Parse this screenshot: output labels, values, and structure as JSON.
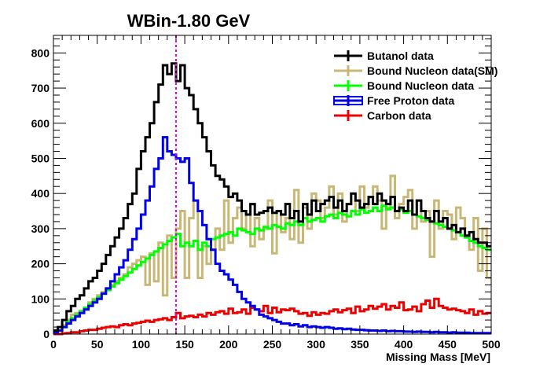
{
  "chart_data": {
    "type": "line",
    "style": "step-histogram",
    "title": "WBin-1.80 GeV",
    "xlabel": "Missing Mass [MeV]",
    "ylabel": "",
    "xlim": [
      0,
      500
    ],
    "ylim": [
      0,
      850
    ],
    "x_ticks": [
      0,
      50,
      100,
      150,
      200,
      250,
      300,
      350,
      400,
      450,
      500
    ],
    "y_ticks": [
      0,
      100,
      200,
      300,
      400,
      500,
      600,
      700,
      800
    ],
    "grid": false,
    "legend_position": "top-right",
    "bin_width": 5,
    "annotations": [
      {
        "type": "vertical-dashed-line",
        "x": 140,
        "color": "#e000e0"
      }
    ],
    "series": [
      {
        "name": "Butanol data",
        "color": "#000000",
        "x": [
          0,
          5,
          10,
          15,
          20,
          25,
          30,
          35,
          40,
          45,
          50,
          55,
          60,
          65,
          70,
          75,
          80,
          85,
          90,
          95,
          100,
          105,
          110,
          115,
          120,
          125,
          130,
          135,
          140,
          145,
          150,
          155,
          160,
          165,
          170,
          175,
          180,
          185,
          190,
          195,
          200,
          205,
          210,
          215,
          220,
          225,
          230,
          235,
          240,
          245,
          250,
          255,
          260,
          265,
          270,
          275,
          280,
          285,
          290,
          295,
          300,
          305,
          310,
          315,
          320,
          325,
          330,
          335,
          340,
          345,
          350,
          355,
          360,
          365,
          370,
          375,
          380,
          385,
          390,
          395,
          400,
          405,
          410,
          415,
          420,
          425,
          430,
          435,
          440,
          445,
          450,
          455,
          460,
          465,
          470,
          475,
          480,
          485,
          490,
          495
        ],
        "values": [
          10,
          20,
          40,
          65,
          80,
          100,
          110,
          130,
          150,
          160,
          180,
          200,
          225,
          250,
          275,
          300,
          330,
          370,
          400,
          470,
          520,
          560,
          600,
          660,
          710,
          765,
          740,
          770,
          720,
          765,
          700,
          680,
          640,
          600,
          560,
          520,
          480,
          450,
          440,
          420,
          390,
          400,
          380,
          350,
          340,
          370,
          340,
          345,
          350,
          360,
          345,
          350,
          340,
          370,
          330,
          350,
          320,
          370,
          340,
          380,
          350,
          370,
          380,
          390,
          360,
          380,
          350,
          370,
          400,
          380,
          360,
          370,
          390,
          370,
          400,
          380,
          370,
          390,
          350,
          360,
          350,
          380,
          340,
          380,
          350,
          330,
          320,
          350,
          320,
          330,
          300,
          310,
          290,
          300,
          280,
          290,
          270,
          260,
          260,
          250
        ]
      },
      {
        "name": "Bound Nucleon data(SM)",
        "color": "#c8b878",
        "x": [
          0,
          5,
          10,
          15,
          20,
          25,
          30,
          35,
          40,
          45,
          50,
          55,
          60,
          65,
          70,
          75,
          80,
          85,
          90,
          95,
          100,
          105,
          110,
          115,
          120,
          125,
          130,
          135,
          140,
          145,
          150,
          155,
          160,
          165,
          170,
          175,
          180,
          185,
          190,
          195,
          200,
          205,
          210,
          215,
          220,
          225,
          230,
          235,
          240,
          245,
          250,
          255,
          260,
          265,
          270,
          275,
          280,
          285,
          290,
          295,
          300,
          305,
          310,
          315,
          320,
          325,
          330,
          335,
          340,
          345,
          350,
          355,
          360,
          365,
          370,
          375,
          380,
          385,
          390,
          395,
          400,
          405,
          410,
          415,
          420,
          425,
          430,
          435,
          440,
          445,
          450,
          455,
          460,
          465,
          470,
          475,
          480,
          485,
          490,
          495
        ],
        "values": [
          5,
          10,
          25,
          40,
          55,
          60,
          65,
          75,
          90,
          100,
          110,
          120,
          130,
          140,
          150,
          160,
          170,
          190,
          200,
          210,
          220,
          140,
          230,
          150,
          260,
          110,
          280,
          160,
          300,
          350,
          160,
          330,
          380,
          160,
          250,
          200,
          240,
          300,
          240,
          380,
          260,
          330,
          360,
          300,
          340,
          250,
          330,
          270,
          300,
          380,
          230,
          350,
          290,
          330,
          270,
          410,
          260,
          360,
          300,
          400,
          380,
          330,
          360,
          420,
          340,
          400,
          320,
          370,
          400,
          350,
          420,
          360,
          390,
          420,
          380,
          300,
          360,
          450,
          330,
          370,
          390,
          410,
          300,
          380,
          320,
          350,
          220,
          380,
          300,
          350,
          340,
          270,
          360,
          330,
          280,
          240,
          330,
          180,
          300,
          160
        ]
      },
      {
        "name": "Bound Nucleon data",
        "color": "#00ff00",
        "x": [
          0,
          5,
          10,
          15,
          20,
          25,
          30,
          35,
          40,
          45,
          50,
          55,
          60,
          65,
          70,
          75,
          80,
          85,
          90,
          95,
          100,
          105,
          110,
          115,
          120,
          125,
          130,
          135,
          140,
          145,
          150,
          155,
          160,
          165,
          170,
          175,
          180,
          185,
          190,
          195,
          200,
          205,
          210,
          215,
          220,
          225,
          230,
          235,
          240,
          245,
          250,
          255,
          260,
          265,
          270,
          275,
          280,
          285,
          290,
          295,
          300,
          305,
          310,
          315,
          320,
          325,
          330,
          335,
          340,
          345,
          350,
          355,
          360,
          365,
          370,
          375,
          380,
          385,
          390,
          395,
          400,
          405,
          410,
          415,
          420,
          425,
          430,
          435,
          440,
          445,
          450,
          455,
          460,
          465,
          470,
          475,
          480,
          485,
          490,
          495
        ],
        "values": [
          5,
          10,
          20,
          35,
          45,
          55,
          65,
          75,
          85,
          95,
          105,
          115,
          125,
          135,
          145,
          155,
          165,
          175,
          185,
          195,
          205,
          215,
          225,
          235,
          245,
          255,
          265,
          275,
          285,
          250,
          260,
          250,
          265,
          240,
          260,
          250,
          270,
          275,
          280,
          285,
          290,
          280,
          300,
          295,
          290,
          285,
          300,
          295,
          305,
          300,
          310,
          305,
          300,
          315,
          310,
          320,
          310,
          330,
          320,
          325,
          330,
          320,
          335,
          340,
          330,
          345,
          340,
          335,
          350,
          340,
          355,
          345,
          350,
          360,
          350,
          365,
          355,
          360,
          350,
          355,
          345,
          350,
          340,
          335,
          330,
          325,
          320,
          315,
          310,
          305,
          300,
          295,
          290,
          280,
          275,
          265,
          260,
          250,
          245,
          240
        ]
      },
      {
        "name": "Free Proton data",
        "color": "#0000ee",
        "x": [
          0,
          5,
          10,
          15,
          20,
          25,
          30,
          35,
          40,
          45,
          50,
          55,
          60,
          65,
          70,
          75,
          80,
          85,
          90,
          95,
          100,
          105,
          110,
          115,
          120,
          125,
          130,
          135,
          140,
          145,
          150,
          155,
          160,
          165,
          170,
          175,
          180,
          185,
          190,
          195,
          200,
          205,
          210,
          215,
          220,
          225,
          230,
          235,
          240,
          245,
          250,
          255,
          260,
          265,
          270,
          275,
          280,
          285,
          290,
          295,
          300,
          305,
          310,
          315,
          320,
          325,
          330,
          335,
          340,
          345,
          350,
          355,
          360,
          365,
          370,
          375,
          380,
          385,
          390,
          395,
          400,
          405,
          410,
          415,
          420,
          425,
          430,
          435,
          440,
          445,
          450,
          455,
          460,
          465,
          470,
          475,
          480,
          485,
          490,
          495
        ],
        "values": [
          5,
          10,
          20,
          30,
          40,
          50,
          60,
          70,
          80,
          90,
          100,
          115,
          130,
          150,
          170,
          190,
          210,
          240,
          270,
          300,
          340,
          380,
          420,
          470,
          500,
          560,
          520,
          510,
          500,
          490,
          500,
          430,
          380,
          350,
          310,
          270,
          240,
          200,
          180,
          170,
          155,
          140,
          120,
          100,
          90,
          80,
          70,
          55,
          50,
          45,
          40,
          35,
          30,
          30,
          25,
          28,
          22,
          25,
          20,
          22,
          20,
          18,
          20,
          18,
          15,
          16,
          14,
          15,
          13,
          12,
          12,
          11,
          10,
          10,
          9,
          10,
          8,
          9,
          8,
          8,
          7,
          7,
          6,
          7,
          6,
          6,
          5,
          6,
          5,
          5,
          4,
          5,
          4,
          4,
          4,
          3,
          3,
          3,
          3,
          3
        ]
      },
      {
        "name": "Carbon data",
        "color": "#ee0000",
        "x": [
          0,
          5,
          10,
          15,
          20,
          25,
          30,
          35,
          40,
          45,
          50,
          55,
          60,
          65,
          70,
          75,
          80,
          85,
          90,
          95,
          100,
          105,
          110,
          115,
          120,
          125,
          130,
          135,
          140,
          145,
          150,
          155,
          160,
          165,
          170,
          175,
          180,
          185,
          190,
          195,
          200,
          205,
          210,
          215,
          220,
          225,
          230,
          235,
          240,
          245,
          250,
          255,
          260,
          265,
          270,
          275,
          280,
          285,
          290,
          295,
          300,
          305,
          310,
          315,
          320,
          325,
          330,
          335,
          340,
          345,
          350,
          355,
          360,
          365,
          370,
          375,
          380,
          385,
          390,
          395,
          400,
          405,
          410,
          415,
          420,
          425,
          430,
          435,
          440,
          445,
          450,
          455,
          460,
          465,
          470,
          475,
          480,
          485,
          490,
          495
        ],
        "values": [
          0,
          0,
          2,
          3,
          5,
          5,
          8,
          10,
          12,
          12,
          15,
          18,
          20,
          22,
          20,
          25,
          28,
          25,
          30,
          32,
          35,
          38,
          35,
          40,
          42,
          45,
          40,
          48,
          60,
          45,
          50,
          52,
          48,
          55,
          50,
          60,
          55,
          62,
          65,
          58,
          72,
          60,
          62,
          70,
          58,
          75,
          70,
          65,
          80,
          60,
          75,
          62,
          70,
          68,
          72,
          65,
          58,
          60,
          52,
          62,
          55,
          60,
          58,
          65,
          70,
          62,
          68,
          72,
          60,
          78,
          65,
          70,
          80,
          72,
          78,
          85,
          70,
          80,
          75,
          90,
          68,
          70,
          78,
          65,
          85,
          95,
          75,
          100,
          80,
          75,
          70,
          72,
          68,
          65,
          60,
          70,
          55,
          65,
          58,
          60
        ]
      }
    ]
  }
}
